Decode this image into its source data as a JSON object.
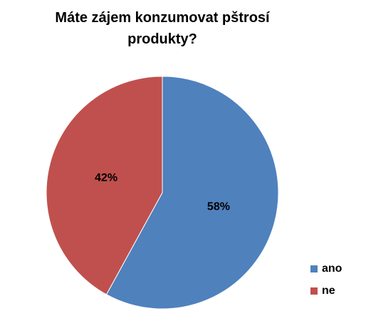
{
  "chart_data": {
    "type": "pie",
    "title": "Máte zájem konzumovat pštrosí produkty?",
    "categories": [
      "ano",
      "ne"
    ],
    "values": [
      58,
      42
    ],
    "value_labels": [
      "58%",
      "42%"
    ],
    "colors": [
      "#4f81bd",
      "#c0504d"
    ],
    "legend": "right"
  }
}
